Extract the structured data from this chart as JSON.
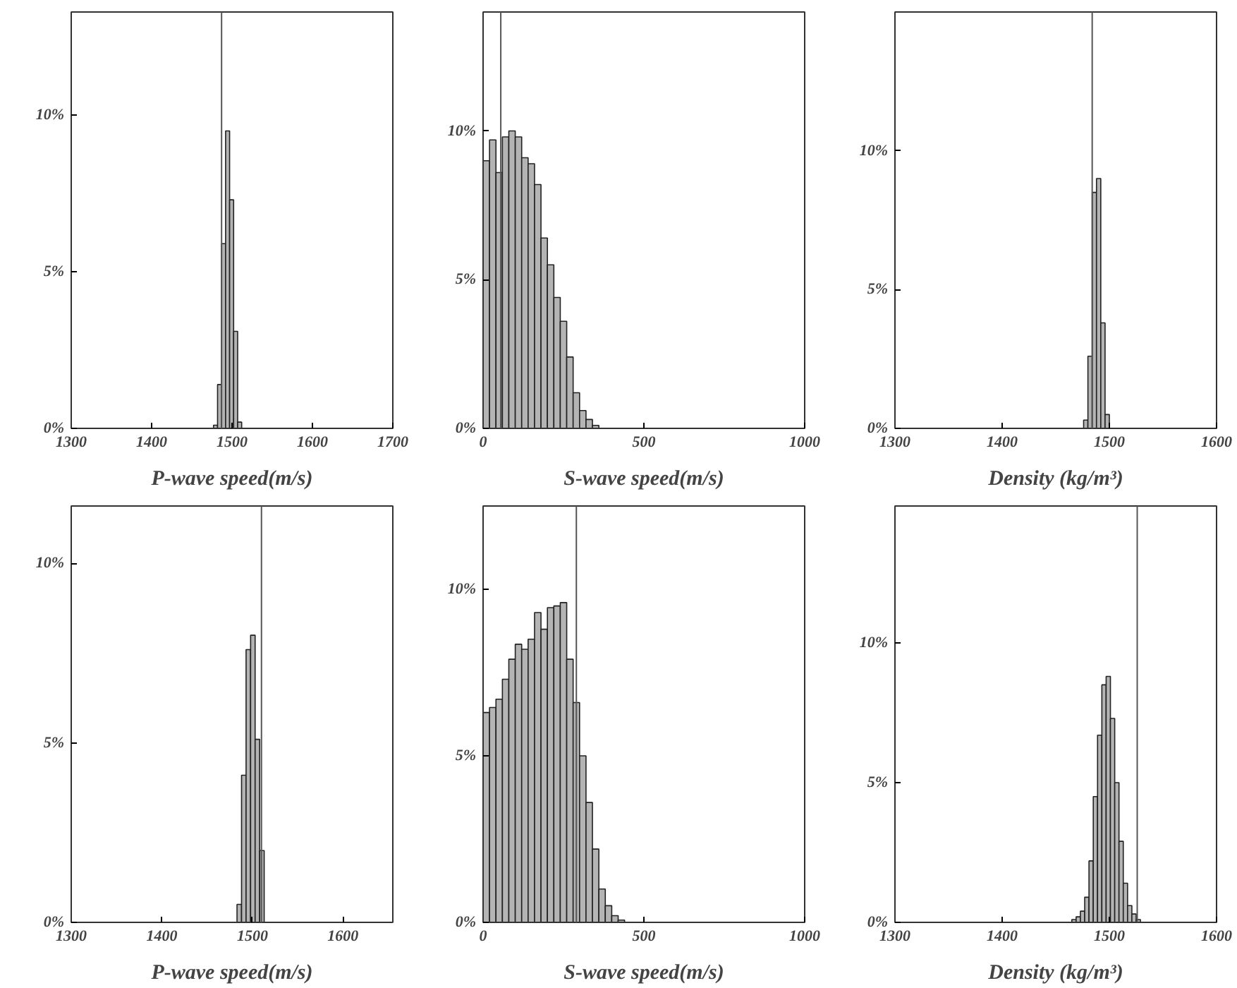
{
  "chart_data": [
    {
      "type": "histogram",
      "xlabel": "P-wave speed(m/s)",
      "bins": [
        1477,
        1482,
        1487,
        1492,
        1497,
        1502,
        1507,
        1512
      ],
      "values": [
        0.1,
        1.4,
        5.9,
        9.5,
        7.3,
        3.1,
        0.2
      ],
      "color": "#b4b4b4",
      "xlim": [
        1300,
        1700
      ],
      "xticks": [
        1300,
        1400,
        1500,
        1600,
        1700
      ],
      "ylim": [
        0,
        13.3
      ],
      "yticks": [
        {
          "value": 0,
          "label": "0%"
        },
        {
          "value": 5,
          "label": "5%"
        },
        {
          "value": 10,
          "label": "10%"
        }
      ],
      "ref_lines": [
        {
          "axis": "x",
          "value": 1487
        }
      ],
      "grid": false
    },
    {
      "type": "histogram",
      "xlabel": "S-wave speed(m/s)",
      "bins": [
        0,
        20,
        40,
        60,
        80,
        100,
        120,
        140,
        160,
        180,
        200,
        220,
        240,
        260,
        280,
        300,
        320,
        340,
        360,
        380
      ],
      "values": [
        9.0,
        9.7,
        8.6,
        9.8,
        10.0,
        9.8,
        9.1,
        8.9,
        8.2,
        6.4,
        5.5,
        4.4,
        3.6,
        2.4,
        1.2,
        0.6,
        0.3,
        0.1,
        null
      ],
      "color": "#b4b4b4",
      "xlim": [
        0,
        1000
      ],
      "xticks": [
        0,
        500,
        1000
      ],
      "ylim": [
        0,
        14
      ],
      "yticks": [
        {
          "value": 0,
          "label": "0%"
        },
        {
          "value": 5,
          "label": "5%"
        },
        {
          "value": 10,
          "label": "10%"
        }
      ],
      "ref_lines": [
        {
          "axis": "x",
          "value": 55
        }
      ],
      "grid": false
    },
    {
      "type": "histogram",
      "xlabel": "Density (kg/m³)",
      "bins": [
        1472,
        1476,
        1480,
        1484,
        1488,
        1492,
        1496,
        1500
      ],
      "values": [
        null,
        0.3,
        2.6,
        8.5,
        9.0,
        3.8,
        0.5
      ],
      "color": "#b4b4b4",
      "xlim": [
        1300,
        1600
      ],
      "xticks": [
        1300,
        1400,
        1500,
        1600
      ],
      "ylim": [
        0,
        15
      ],
      "yticks": [
        {
          "value": 0,
          "label": "0%"
        },
        {
          "value": 5,
          "label": "5%"
        },
        {
          "value": 10,
          "label": "10%"
        }
      ],
      "ref_lines": [
        {
          "axis": "x",
          "value": 1484
        }
      ],
      "grid": false
    },
    {
      "type": "histogram",
      "xlabel": "P-wave speed(m/s)",
      "bins": [
        1478,
        1483,
        1488,
        1493,
        1498,
        1503,
        1508,
        1513
      ],
      "values": [
        null,
        0.5,
        4.1,
        7.6,
        8.0,
        5.1,
        2.0
      ],
      "color": "#b4b4b4",
      "xlim": [
        1300,
        1655
      ],
      "xticks": [
        1300,
        1400,
        1500,
        1600
      ],
      "ylim": [
        0,
        11.6
      ],
      "yticks": [
        {
          "value": 0,
          "label": "0%"
        },
        {
          "value": 5,
          "label": "5%"
        },
        {
          "value": 10,
          "label": "10%"
        }
      ],
      "ref_lines": [
        {
          "axis": "x",
          "value": 1510
        }
      ],
      "grid": false
    },
    {
      "type": "histogram",
      "xlabel": "S-wave speed(m/s)",
      "bins": [
        0,
        20,
        40,
        60,
        80,
        100,
        120,
        140,
        160,
        180,
        200,
        220,
        240,
        260,
        280,
        300,
        320,
        340,
        360,
        380,
        400,
        420,
        440
      ],
      "values": [
        6.3,
        6.45,
        6.7,
        7.3,
        7.9,
        8.35,
        8.2,
        8.5,
        9.3,
        8.8,
        9.45,
        9.5,
        9.6,
        7.9,
        6.6,
        5.0,
        3.6,
        2.2,
        1.0,
        0.5,
        0.2,
        0.07
      ],
      "color": "#b4b4b4",
      "xlim": [
        0,
        1000
      ],
      "xticks": [
        0,
        500,
        1000
      ],
      "ylim": [
        0,
        12.5
      ],
      "yticks": [
        {
          "value": 0,
          "label": "0%"
        },
        {
          "value": 5,
          "label": "5%"
        },
        {
          "value": 10,
          "label": "10%"
        }
      ],
      "ref_lines": [
        {
          "axis": "x",
          "value": 290
        }
      ],
      "grid": false
    },
    {
      "type": "histogram",
      "xlabel": "Density (kg/m³)",
      "bins": [
        1457,
        1461,
        1465,
        1469,
        1473,
        1477,
        1481,
        1485,
        1489,
        1493,
        1497,
        1501,
        1505,
        1509,
        1513,
        1517,
        1521,
        1525,
        1529,
        1533
      ],
      "values": [
        null,
        null,
        0.1,
        0.2,
        0.4,
        0.9,
        2.2,
        4.5,
        6.7,
        8.5,
        8.8,
        7.3,
        5.0,
        2.9,
        1.4,
        0.6,
        0.3,
        0.1,
        null
      ],
      "color": "#b4b4b4",
      "xlim": [
        1300,
        1600
      ],
      "xticks": [
        1300,
        1400,
        1500,
        1600
      ],
      "ylim": [
        0,
        14.9
      ],
      "yticks": [
        {
          "value": 0,
          "label": "0%"
        },
        {
          "value": 5,
          "label": "5%"
        },
        {
          "value": 10,
          "label": "10%"
        }
      ],
      "ref_lines": [
        {
          "axis": "x",
          "value": 1526
        }
      ],
      "grid": false
    }
  ]
}
